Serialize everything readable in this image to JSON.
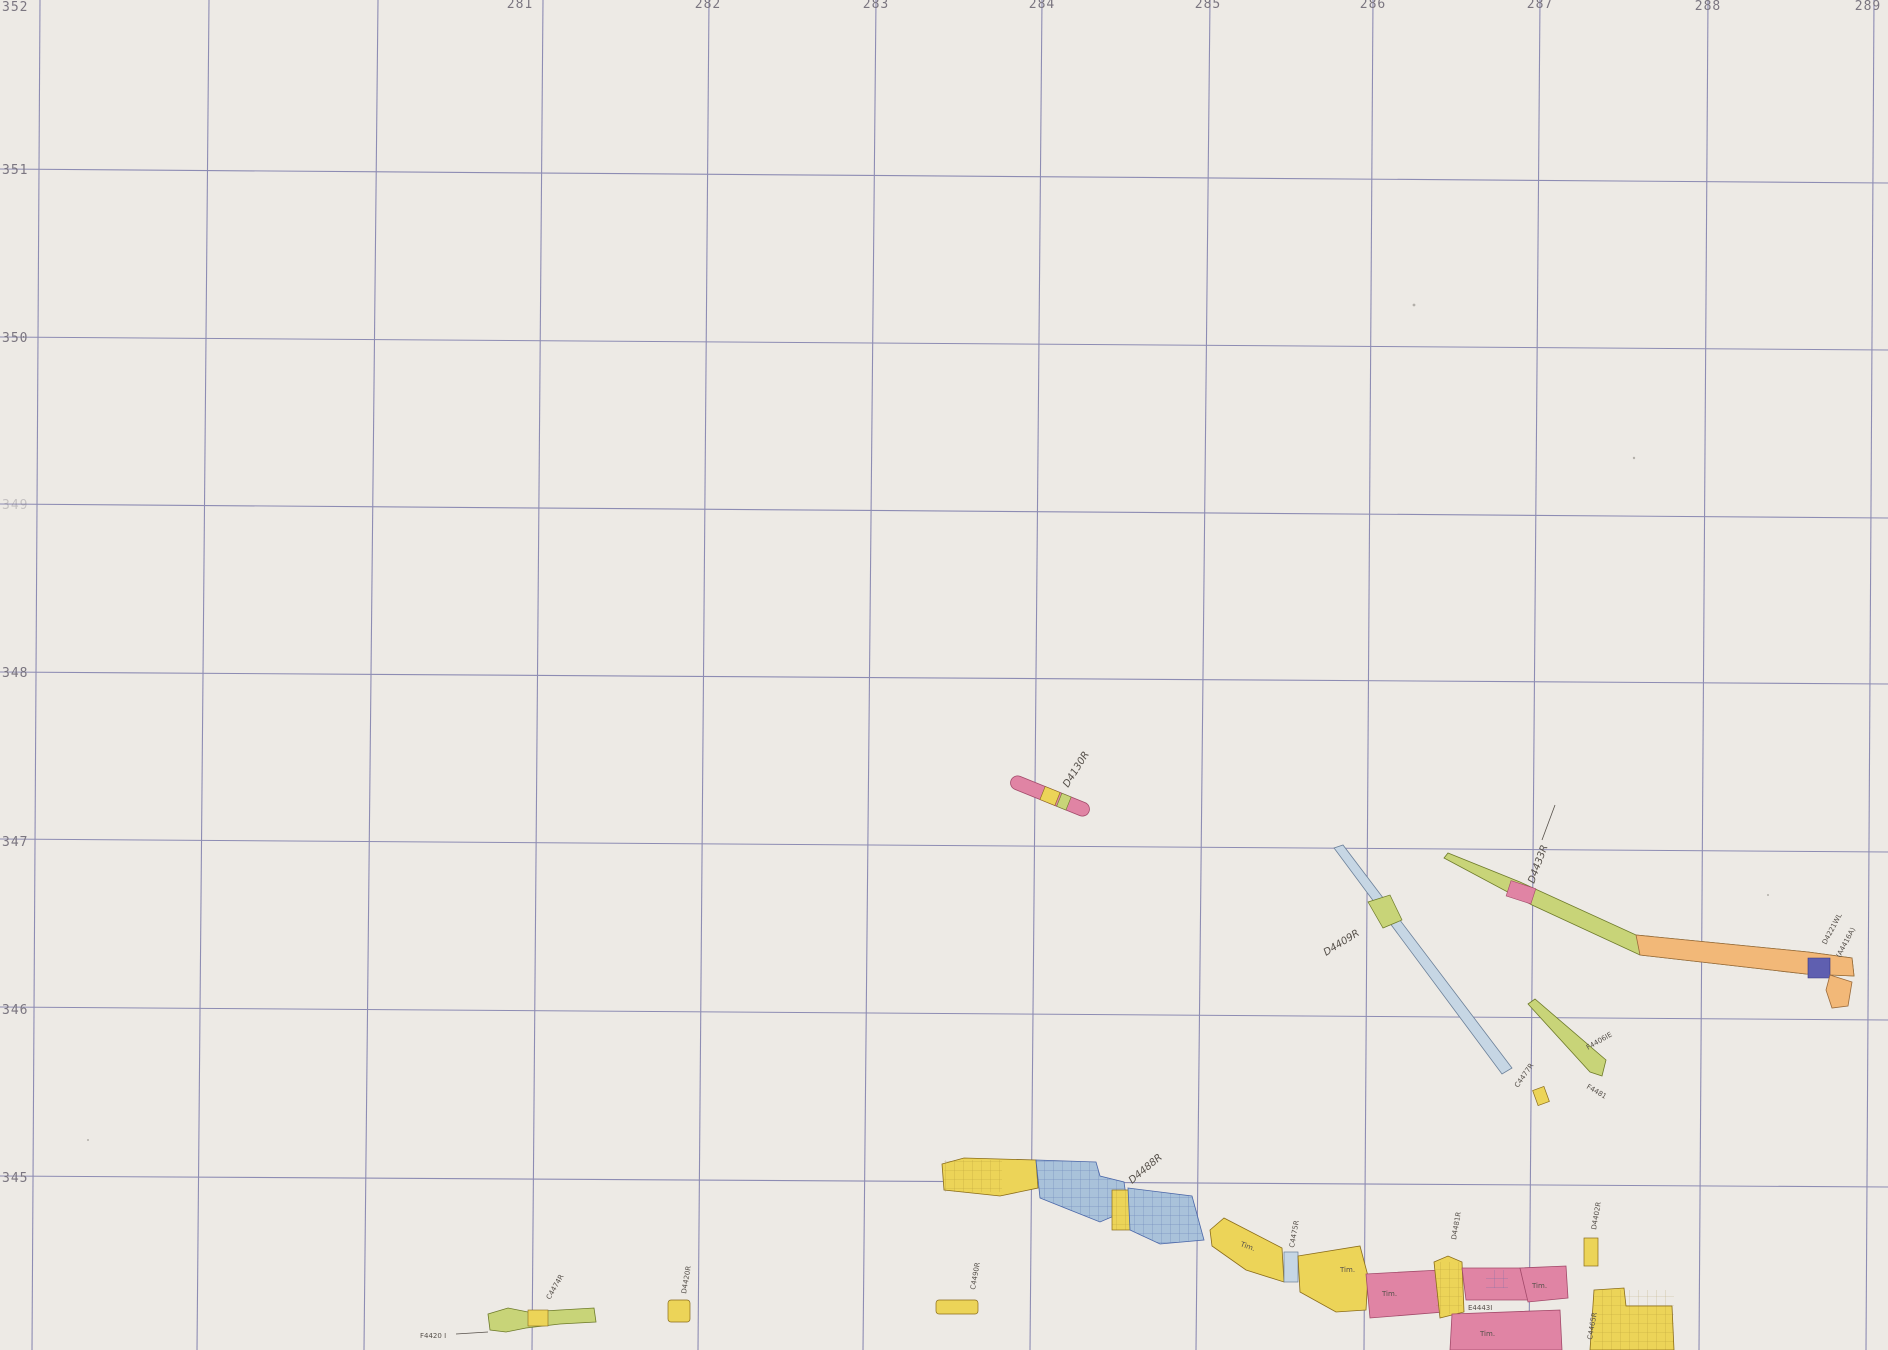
{
  "map": {
    "title": "",
    "grid_color": "#6e6da3",
    "paper_color": "#ebe8e3",
    "easting_labels": [
      "281",
      "282",
      "283",
      "284",
      "285",
      "286",
      "287",
      "288",
      "289"
    ],
    "northing_labels": [
      "352",
      "351",
      "350",
      "349",
      "348",
      "347",
      "346",
      "345"
    ],
    "colors": {
      "pink": "#e084a4",
      "yellow": "#ecd458",
      "blue": "#a9c2da",
      "light_blue": "#c6d6e4",
      "green": "#c8d478",
      "orange": "#f2b878"
    },
    "parcel_labels": {
      "d4130r": "D4130R",
      "d4409r": "D4409R",
      "d4433r": "D4433R",
      "d4221wl": "D4221WL",
      "d4221wl_sub": "(A4416A)",
      "f4406": "F4406IE",
      "c4477": "C4477R",
      "f4481": "F4481",
      "d4488": "D4488R",
      "c4475": "C4475R",
      "d4481": "D4481R",
      "d4402": "D4402R",
      "e4443": "E4443I",
      "c4465": "C4465R",
      "c4490": "C4490R",
      "d4420": "D4420R",
      "c4474": "C4474R",
      "f4420": "F4420 I",
      "tim1": "Tim.",
      "tim2": "Tim.",
      "tim3": "Tim.",
      "tim4": "Tim.",
      "tim5": "Tim."
    }
  }
}
